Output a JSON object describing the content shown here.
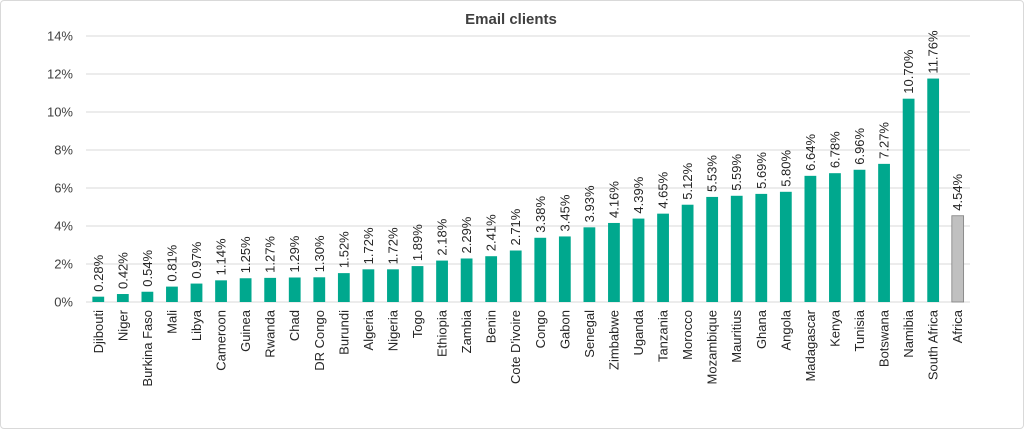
{
  "chart_data": {
    "type": "bar",
    "title": "Email clients",
    "xlabel": "",
    "ylabel": "",
    "ylim": [
      0,
      14
    ],
    "ytick_step": 2,
    "ytick_suffix": "%",
    "grid": true,
    "categories": [
      "Djibouti",
      "Niger",
      "Burkina Faso",
      "Mali",
      "Libya",
      "Cameroon",
      "Guinea",
      "Rwanda",
      "Chad",
      "DR Congo",
      "Burundi",
      "Algeria",
      "Nigeria",
      "Togo",
      "Ethiopia",
      "Zambia",
      "Benin",
      "Cote D'ivoire",
      "Congo",
      "Gabon",
      "Senegal",
      "Zimbabwe",
      "Uganda",
      "Tanzania",
      "Morocco",
      "Mozambique",
      "Mauritius",
      "Ghana",
      "Angola",
      "Madagascar",
      "Kenya",
      "Tunisia",
      "Botswana",
      "Namibia",
      "South Africa",
      "Africa"
    ],
    "values": [
      0.28,
      0.42,
      0.54,
      0.81,
      0.97,
      1.14,
      1.25,
      1.27,
      1.29,
      1.3,
      1.52,
      1.72,
      1.72,
      1.89,
      2.18,
      2.29,
      2.41,
      2.71,
      3.38,
      3.45,
      3.93,
      4.16,
      4.39,
      4.65,
      5.12,
      5.53,
      5.59,
      5.69,
      5.8,
      6.64,
      6.78,
      6.96,
      7.27,
      10.7,
      11.76,
      4.54
    ],
    "data_labels": [
      "0.28%",
      "0.42%",
      "0.54%",
      "0.81%",
      "0.97%",
      "1.14%",
      "1.25%",
      "1.27%",
      "1.29%",
      "1.30%",
      "1.52%",
      "1.72%",
      "1.72%",
      "1.89%",
      "2.18%",
      "2.29%",
      "2.41%",
      "2.71%",
      "3.38%",
      "3.45%",
      "3.93%",
      "4.16%",
      "4.39%",
      "4.65%",
      "5.12%",
      "5.53%",
      "5.59%",
      "5.69%",
      "5.80%",
      "6.64%",
      "6.78%",
      "6.96%",
      "7.27%",
      "10.70%",
      "11.76%",
      "4.54%"
    ],
    "colors": {
      "country": "#00a88e",
      "aggregate": "#c0c0c0",
      "aggregate_stroke": "#7f7f7f"
    },
    "highlight_category": "Africa"
  }
}
